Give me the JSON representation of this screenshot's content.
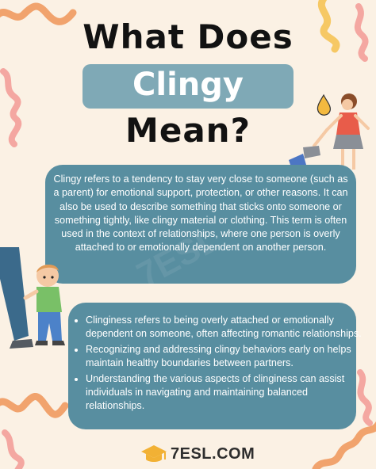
{
  "title": {
    "line1": "What Does",
    "line2": "Clingy",
    "line3": "Mean?"
  },
  "definition": "Clingy refers to a tendency to stay very close to someone (such as a parent) for emotional support, protection, or other reasons. It can also be used to describe something that sticks onto someone or something tightly, like clingy material or clothing. This term is often used in the context of relationships, where one person is overly attached to or emotionally dependent on another person.",
  "bullets": [
    "Clinginess refers to being overly attached or emotionally dependent on someone, often affecting romantic relationships.",
    "Recognizing and addressing clingy behaviors early on helps maintain healthy boundaries between partners.",
    "Understanding the various aspects of clinginess can assist individuals in navigating and maintaining balanced relationships."
  ],
  "brand": "7ESL.COM",
  "watermark": "7ESL",
  "colors": {
    "background": "#fbf1e4",
    "panel": "#588ea0",
    "pill": "#7fa9b6",
    "squiggle_orange": "#f1a36d",
    "squiggle_pink": "#f4a7a1",
    "squiggle_yellow": "#f6c864"
  },
  "icons": [
    "squiggle-decoration",
    "woman-walking-illustration",
    "child-holding-leg-illustration",
    "graduation-cap-icon"
  ]
}
